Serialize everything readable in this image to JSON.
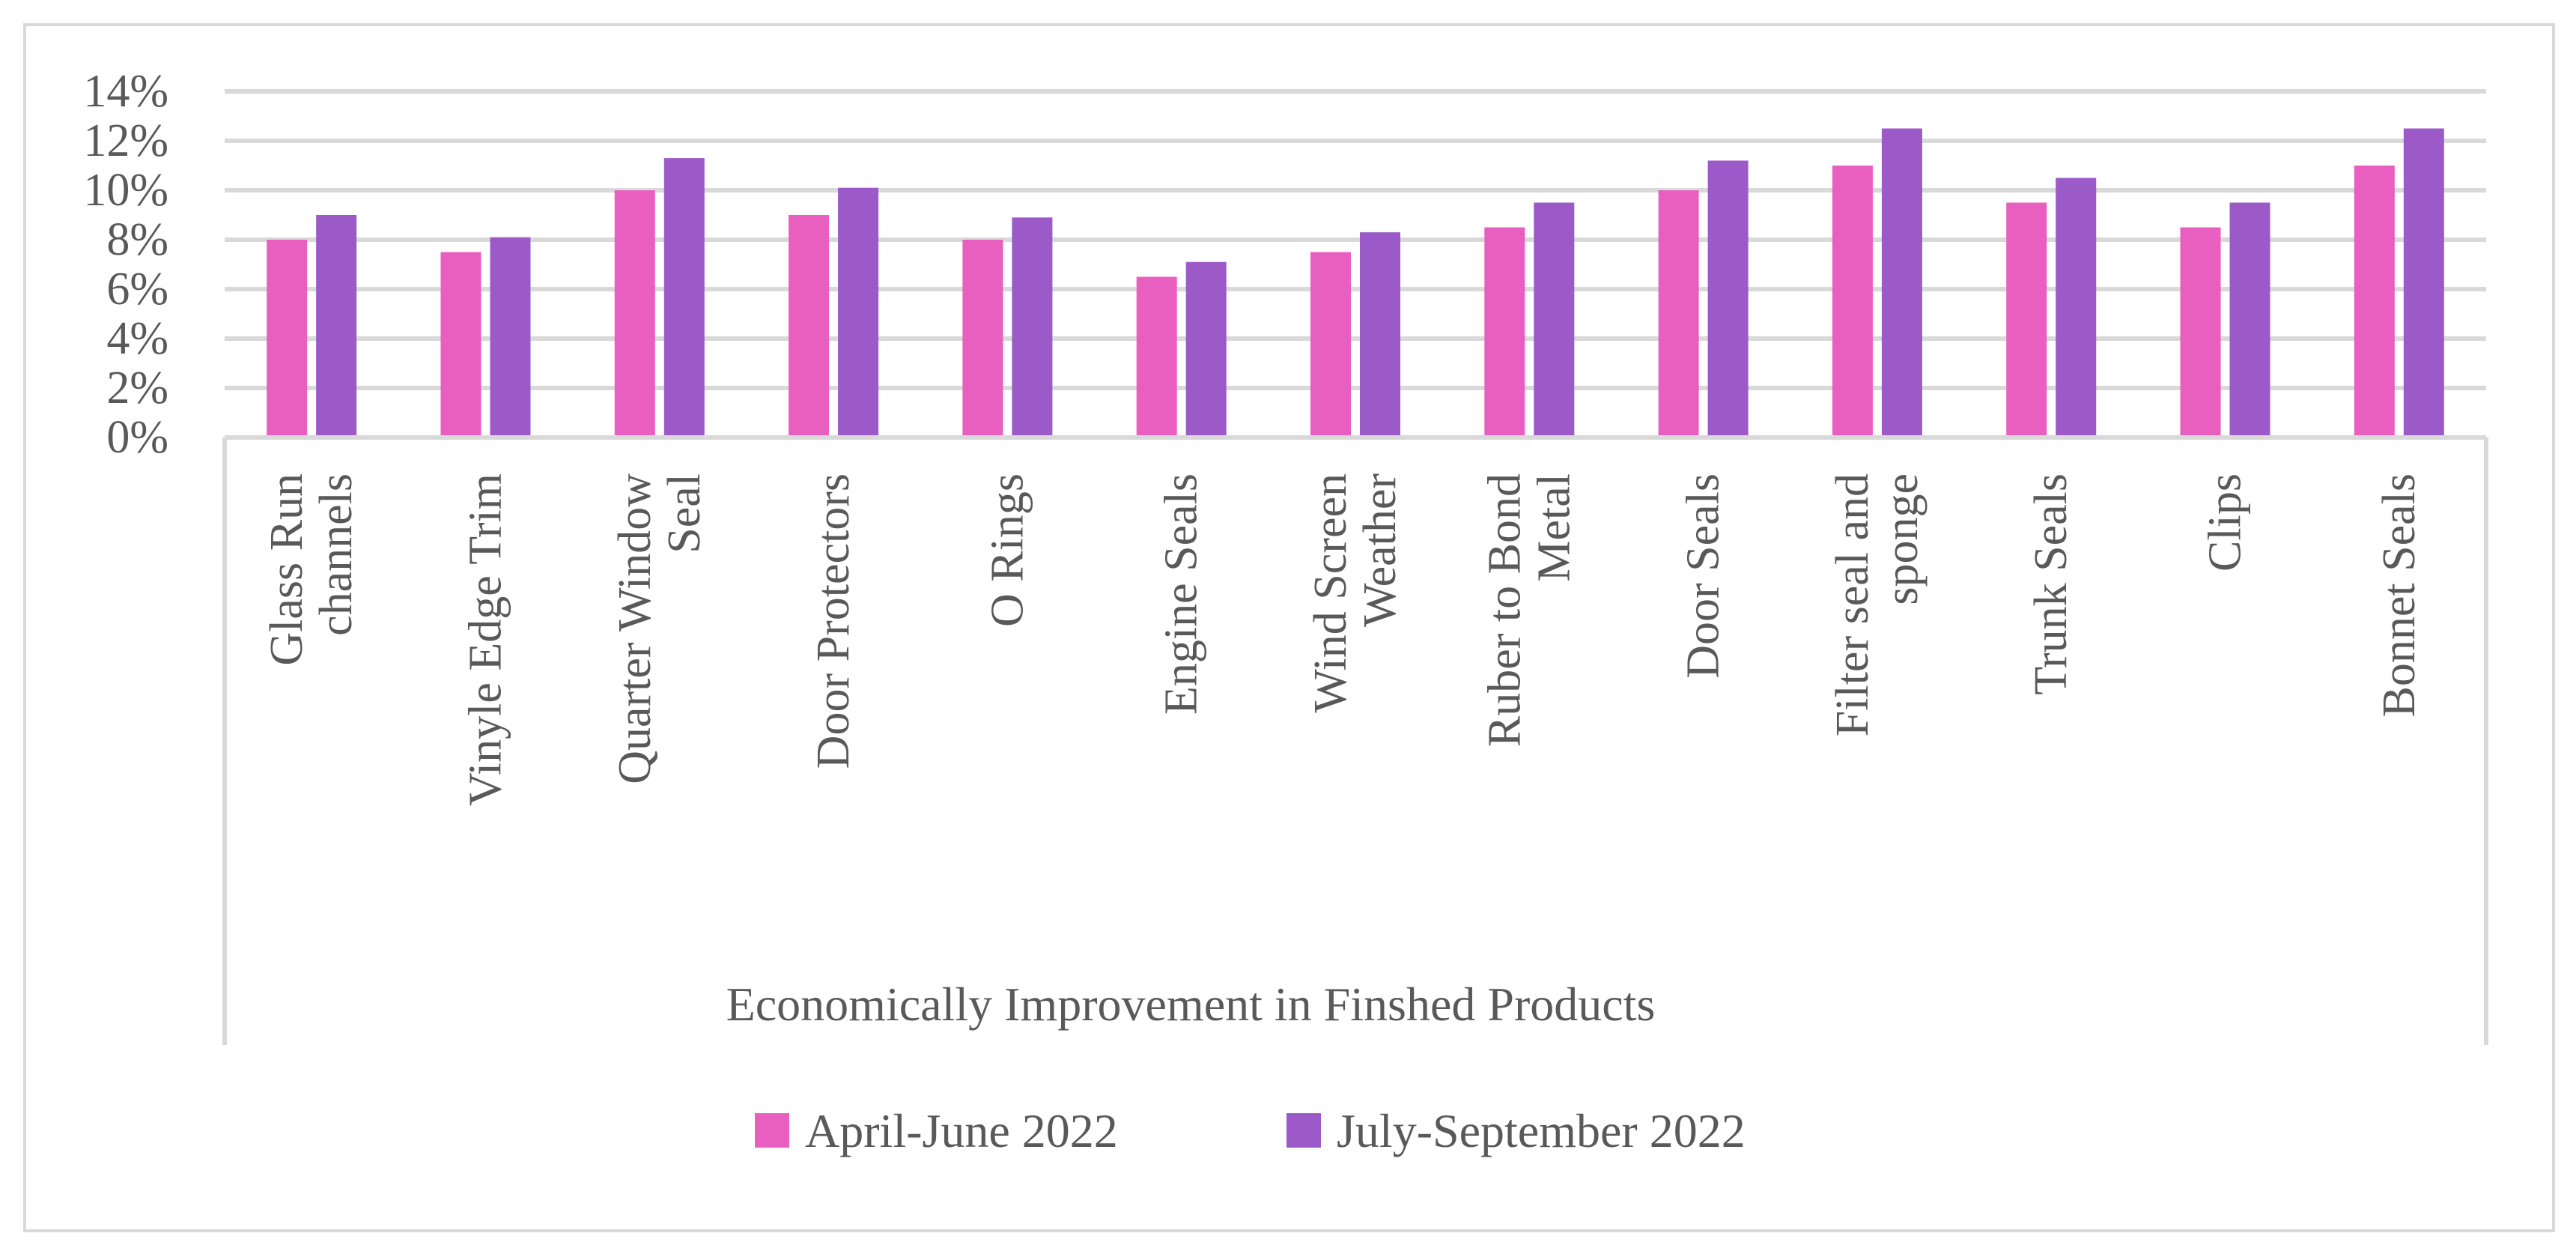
{
  "chart_data": {
    "type": "bar",
    "title": "",
    "xlabel": "Economically Improvement in Finshed Products",
    "ylabel": "",
    "ylim": [
      0,
      14
    ],
    "yticks": [
      0,
      2,
      4,
      6,
      8,
      10,
      12,
      14
    ],
    "ytick_labels": [
      "0%",
      "2%",
      "4%",
      "6%",
      "8%",
      "10%",
      "12%",
      "14%"
    ],
    "grid": true,
    "legend_position": "bottom",
    "categories": [
      "Glass Run channels",
      "Vinyle Edge Trim",
      "Quarter Window Seal",
      "Door Protectors",
      "O Rings",
      "Engine Seals",
      "Wind Screen Weather",
      "Ruber to Bond Metal",
      "Door Seals",
      "Filter seal and sponge",
      "Trunk Seals",
      "Clips",
      "Bonnet Seals"
    ],
    "category_lines": [
      [
        "Glass Run",
        "channels"
      ],
      [
        "Vinyle Edge Trim"
      ],
      [
        "Quarter Window",
        "Seal"
      ],
      [
        "Door Protectors"
      ],
      [
        "O Rings"
      ],
      [
        "Engine Seals"
      ],
      [
        "Wind Screen",
        "Weather"
      ],
      [
        "Ruber to Bond",
        "Metal"
      ],
      [
        "Door Seals"
      ],
      [
        "Filter seal and",
        "sponge"
      ],
      [
        "Trunk Seals"
      ],
      [
        "Clips"
      ],
      [
        "Bonnet Seals"
      ]
    ],
    "series": [
      {
        "name": "April-June 2022",
        "color": "#E95FC0",
        "values": [
          8.0,
          7.5,
          10.0,
          9.0,
          8.0,
          6.5,
          7.5,
          8.5,
          10.0,
          11.0,
          9.5,
          8.5,
          11.0
        ]
      },
      {
        "name": "July-September 2022",
        "color": "#9B5AC8",
        "values": [
          9.0,
          8.1,
          11.3,
          10.1,
          8.9,
          7.1,
          8.3,
          9.5,
          11.2,
          12.5,
          10.5,
          9.5,
          12.5
        ]
      }
    ]
  }
}
